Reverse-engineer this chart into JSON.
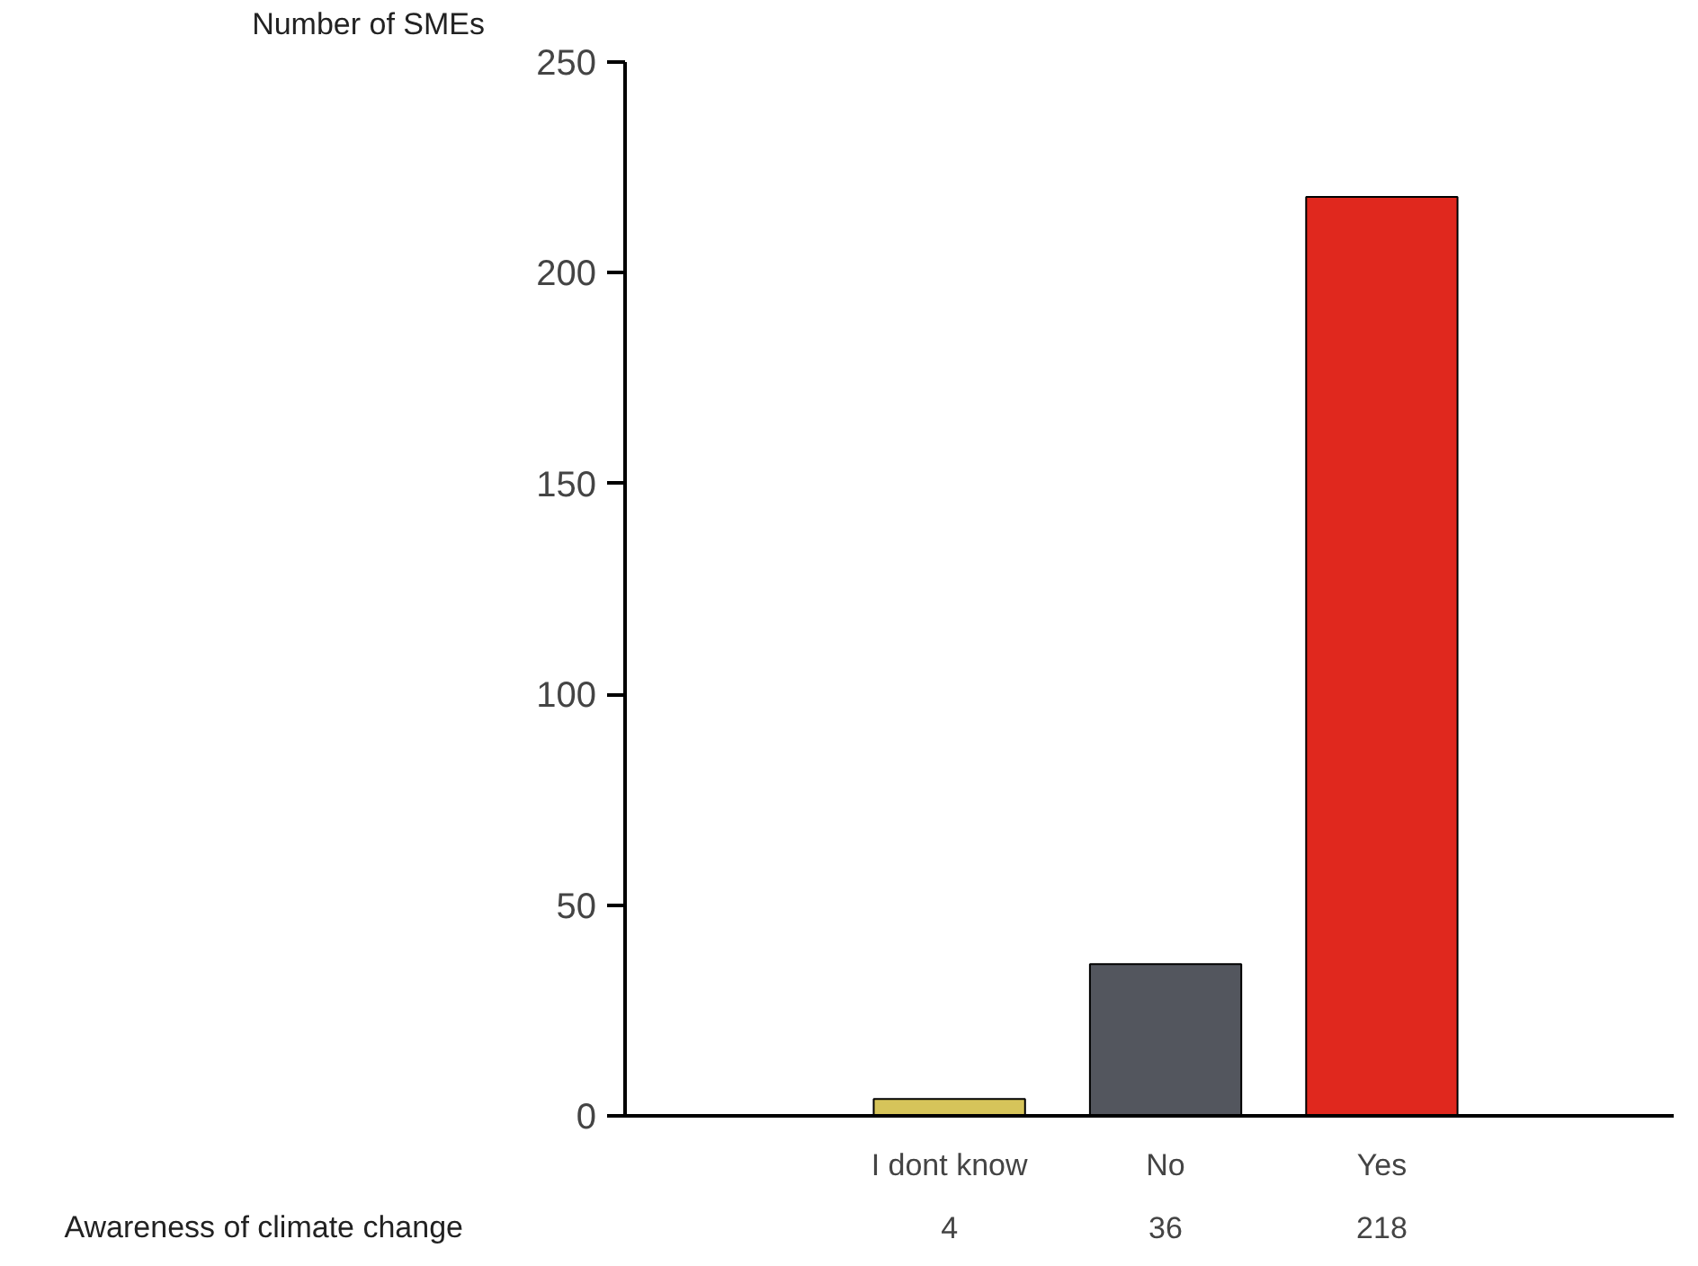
{
  "chart_data": {
    "type": "bar",
    "ylabel": "Number of SMEs",
    "xlabel": "Awareness of climate change",
    "categories": [
      "I dont know",
      "No",
      "Yes"
    ],
    "values": [
      4,
      36,
      218
    ],
    "colors": [
      "#d6c45a",
      "#53565e",
      "#e0281e"
    ],
    "ylim": [
      0,
      250
    ],
    "yticks": [
      0,
      50,
      100,
      150,
      200,
      250
    ],
    "grid": false,
    "data_labels": true
  }
}
